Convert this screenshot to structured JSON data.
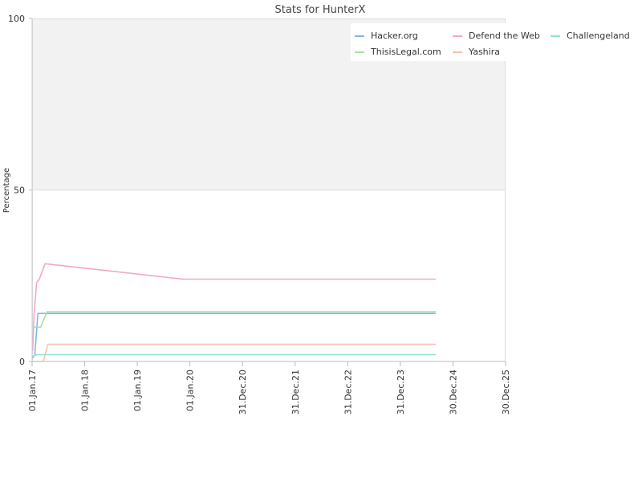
{
  "chart_data": {
    "type": "line",
    "title": "Stats for HunterX",
    "xlabel": "",
    "ylabel": "Percentage",
    "ylim": [
      0,
      100
    ],
    "xlim": [
      "2017-01-01",
      "2025-12-30"
    ],
    "yticks": [
      0,
      50,
      100
    ],
    "xticks": [
      {
        "date": "2017-01-01",
        "label": "01.Jan.17"
      },
      {
        "date": "2018-01-01",
        "label": "01.Jan.18"
      },
      {
        "date": "2019-01-01",
        "label": "01.Jan.19"
      },
      {
        "date": "2020-01-01",
        "label": "01.Jan.20"
      },
      {
        "date": "2020-12-31",
        "label": "31.Dec.20"
      },
      {
        "date": "2021-12-31",
        "label": "31.Dec.21"
      },
      {
        "date": "2022-12-31",
        "label": "31.Dec.22"
      },
      {
        "date": "2023-12-31",
        "label": "31.Dec.23"
      },
      {
        "date": "2024-12-30",
        "label": "30.Dec.24"
      },
      {
        "date": "2025-12-30",
        "label": "30.Dec.25"
      }
    ],
    "upper_band": {
      "from": 50,
      "to": 100,
      "color": "#f2f2f2"
    },
    "grid": false,
    "legend_position": "top-right",
    "series": [
      {
        "name": "Hacker.org",
        "color": "#7fb8e6",
        "x": [
          "2017-01-05",
          "2017-01-20",
          "2017-02-10",
          "2017-03-15",
          "2024-09-01"
        ],
        "y": [
          1,
          2,
          14,
          14,
          14
        ]
      },
      {
        "name": "Defend the Web",
        "color": "#f2a7c6",
        "x": [
          "2017-01-05",
          "2017-01-15",
          "2017-02-01",
          "2017-02-20",
          "2017-04-01",
          "2019-11-15",
          "2024-09-01"
        ],
        "y": [
          3,
          14,
          23,
          24,
          28.5,
          24,
          24
        ]
      },
      {
        "name": "Challengeland",
        "color": "#8ee3d1",
        "x": [
          "2017-01-05",
          "2017-02-01",
          "2017-03-15",
          "2024-09-01"
        ],
        "y": [
          1.5,
          2,
          2,
          2
        ]
      },
      {
        "name": "ThisisLegal.com",
        "color": "#a6e3a0",
        "x": [
          "2017-01-05",
          "2017-02-01",
          "2017-03-01",
          "2017-04-15",
          "2024-09-01"
        ],
        "y": [
          10,
          10,
          10,
          14.5,
          14.5
        ]
      },
      {
        "name": "Yashira",
        "color": "#f5c2b3",
        "x": [
          "2017-01-05",
          "2017-03-01",
          "2017-03-20",
          "2017-04-20",
          "2024-09-01"
        ],
        "y": [
          0,
          0,
          0,
          5,
          5
        ]
      }
    ]
  }
}
